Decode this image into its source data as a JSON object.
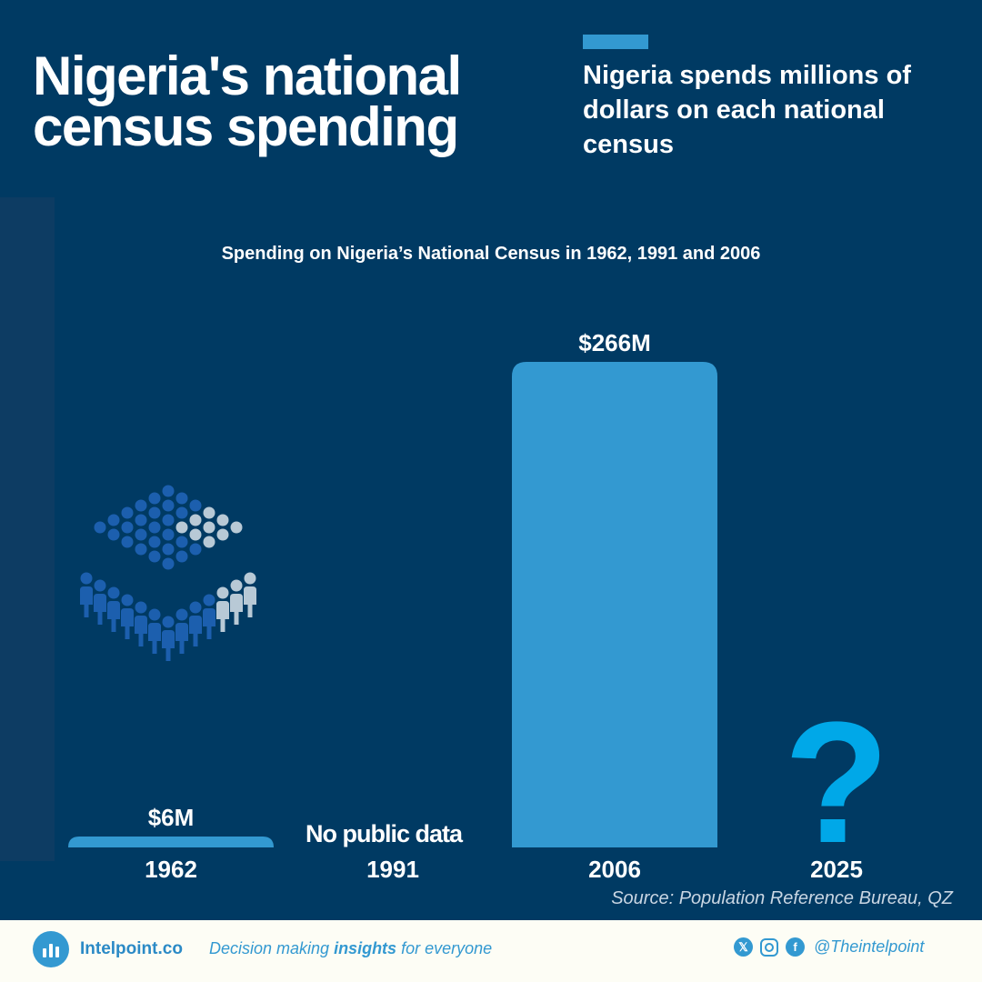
{
  "header": {
    "title_line1": "Nigeria's national",
    "title_line2": "census spending",
    "subtitle": "Nigeria spends millions of dollars on each national census"
  },
  "chart_data": {
    "type": "bar",
    "title": "Spending on Nigeria’s National Census in 1962, 1991 and 2006",
    "categories": [
      "1962",
      "1991",
      "2006",
      "2025"
    ],
    "values": [
      6,
      null,
      266,
      null
    ],
    "value_labels": [
      "$6M",
      "No public data",
      "$266M",
      "?"
    ],
    "unit": "$M",
    "xlabel": "",
    "ylabel": "",
    "grid": false,
    "bar_color": "#3399d1",
    "unknown_color": "#00a8e8"
  },
  "source": "Source: Population Reference Bureau, QZ",
  "footer": {
    "brand": "Intelpoint.co",
    "tagline_pre": "Decision making ",
    "tagline_bold": "insights",
    "tagline_post": " for everyone",
    "handle": "@Theintelpoint",
    "social_icons": [
      "x-icon",
      "instagram-icon",
      "facebook-icon"
    ]
  },
  "colors": {
    "background": "#003a63",
    "accent": "#3399d1",
    "footer_bg": "#fdfdf5",
    "people_dark": "#1c5fae",
    "people_light": "#b8c9d6"
  }
}
